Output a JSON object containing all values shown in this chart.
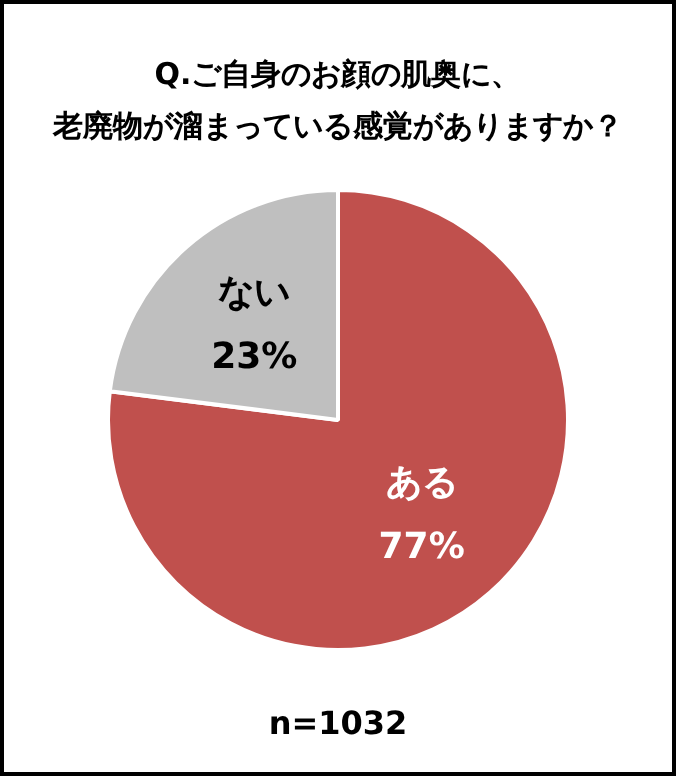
{
  "chart_data": {
    "type": "pie",
    "title": "Q.ご自身のお顔の肌奥に、老廃物が溜まっている感覚がありますか？",
    "categories": [
      "ある",
      "ない"
    ],
    "values": [
      77,
      23
    ],
    "colors": [
      "#c0504d",
      "#bfbfbf"
    ],
    "value_labels": [
      "77%",
      "23%"
    ],
    "annotations": [
      "n=1032"
    ],
    "legend": false
  }
}
